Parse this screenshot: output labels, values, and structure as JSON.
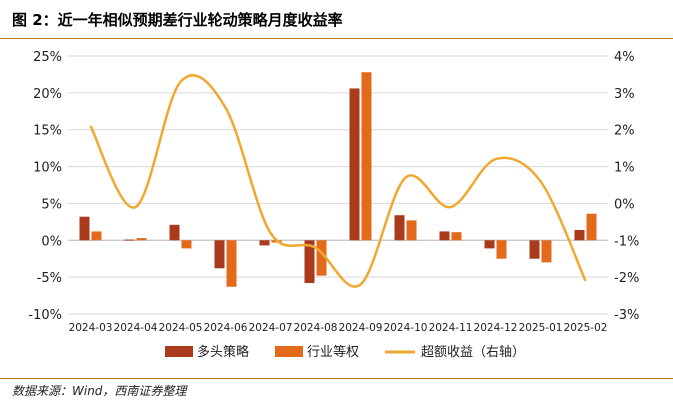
{
  "header": {
    "title": "图 2：近一年相似预期差行业轮动策略月度收益率"
  },
  "footer": {
    "source": "数据来源：Wind，西南证券整理"
  },
  "colors": {
    "series1": "#a93a1c",
    "series2": "#e36a1b",
    "series3": "#f0a830",
    "rule": "#b8792a",
    "grid": "#d9d9d9"
  },
  "chart_data": {
    "type": "bar",
    "categories": [
      "2024-03",
      "2024-04",
      "2024-05",
      "2024-06",
      "2024-07",
      "2024-08",
      "2024-09",
      "2024-10",
      "2024-11",
      "2024-12",
      "2025-01",
      "2025-02"
    ],
    "left_axis": {
      "ticks": [
        "25%",
        "20%",
        "15%",
        "10%",
        "5%",
        "0%",
        "-5%",
        "-10%"
      ],
      "ylim": [
        -10,
        25
      ]
    },
    "right_axis": {
      "ticks": [
        "4%",
        "3%",
        "2%",
        "1%",
        "0%",
        "-1%",
        "-2%",
        "-3%"
      ],
      "ylim": [
        -3,
        4
      ]
    },
    "series": [
      {
        "name": "多头策略",
        "type": "bar",
        "axis": "left",
        "values": [
          3.2,
          0.1,
          2.1,
          -3.8,
          -0.7,
          -5.8,
          20.6,
          3.4,
          1.2,
          -1.1,
          -2.5,
          1.4
        ]
      },
      {
        "name": "行业等权",
        "type": "bar",
        "axis": "left",
        "values": [
          1.2,
          0.3,
          -1.1,
          -6.3,
          -0.3,
          -4.8,
          22.8,
          2.7,
          1.1,
          -2.5,
          -3.0,
          3.6
        ]
      },
      {
        "name": "超额收益（右轴）",
        "type": "line",
        "axis": "right",
        "values": [
          2.1,
          -0.1,
          3.3,
          2.6,
          -0.8,
          -1.2,
          -2.2,
          0.7,
          -0.1,
          1.2,
          0.6,
          -2.1
        ]
      }
    ]
  }
}
